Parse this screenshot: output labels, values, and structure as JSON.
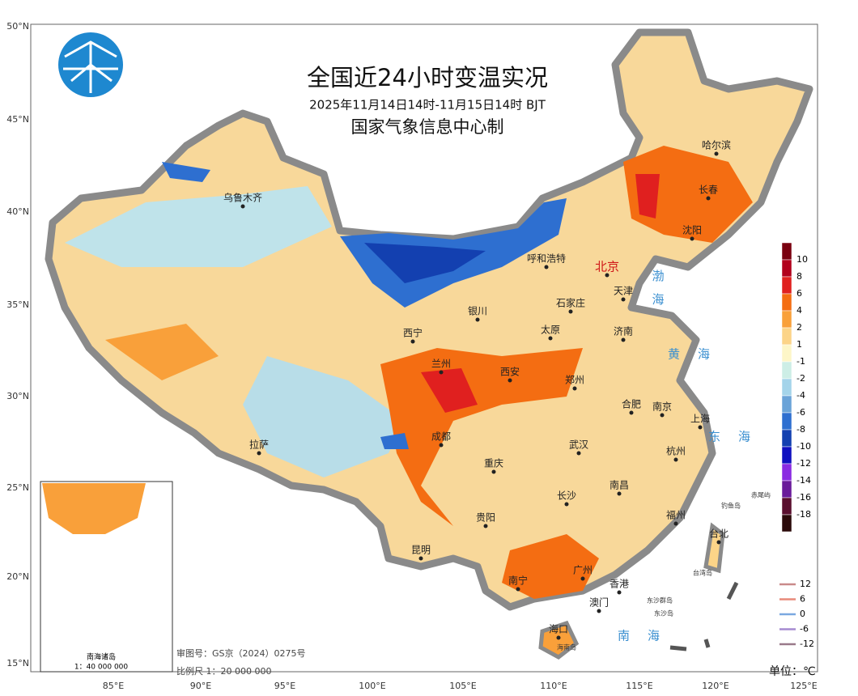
{
  "header": {
    "title": "全国近24小时变温实况",
    "subtitle": "2025年11月14日14时-11月15日14时 BJT",
    "credit": "国家气象信息中心制"
  },
  "axes": {
    "lat_labels": [
      "50°N",
      "45°N",
      "40°N",
      "35°N",
      "30°N",
      "25°N",
      "20°N",
      "15°N"
    ],
    "lon_labels": [
      "85°E",
      "90°E",
      "95°E",
      "100°E",
      "105°E",
      "110°E",
      "115°E",
      "120°E",
      "125°E"
    ]
  },
  "cities": [
    "乌鲁木齐",
    "哈尔滨",
    "长春",
    "沈阳",
    "北京",
    "天津",
    "呼和浩特",
    "石家庄",
    "银川",
    "太原",
    "济南",
    "西宁",
    "兰州",
    "西安",
    "郑州",
    "合肥",
    "南京",
    "上海",
    "拉萨",
    "成都",
    "武汉",
    "杭州",
    "重庆",
    "长沙",
    "南昌",
    "贵阳",
    "福州",
    "台北",
    "昆明",
    "南宁",
    "广州",
    "香港",
    "澳门",
    "海口"
  ],
  "seas": [
    "渤海",
    "黄海",
    "东海",
    "南海"
  ],
  "islands": [
    "钓鱼岛",
    "赤尾屿",
    "台湾岛",
    "东沙群岛",
    "东沙岛",
    "海南岛"
  ],
  "legend": {
    "labels": [
      10,
      8,
      6,
      4,
      2,
      1,
      -1,
      -2,
      -4,
      -6,
      -8,
      -10,
      -12,
      -14,
      -16,
      -18
    ],
    "colors": [
      "#7a0010",
      "#b2001c",
      "#e0201f",
      "#f46d12",
      "#f9a03a",
      "#fcd488",
      "#fdf6c8",
      "#cdeee6",
      "#a4d4ea",
      "#6aa3d8",
      "#2e6fd0",
      "#1340b0",
      "#1010c0",
      "#8a2be2",
      "#6a1a9a",
      "#5a0f2e",
      "#2b0a0a"
    ]
  },
  "line_legend": {
    "labels": [
      12,
      6,
      0,
      -6,
      -12
    ],
    "colors": [
      "#c98a8a",
      "#e88a7a",
      "#7aa8e0",
      "#a58ad0",
      "#9a7a8a"
    ]
  },
  "inset": {
    "title": "南海诸岛",
    "scale": "1：40 000 000"
  },
  "footer": {
    "approval": "审图号：GS京（2024）0275号",
    "scale": "比例尺 1：20 000 000",
    "unit": "单位：℃"
  }
}
